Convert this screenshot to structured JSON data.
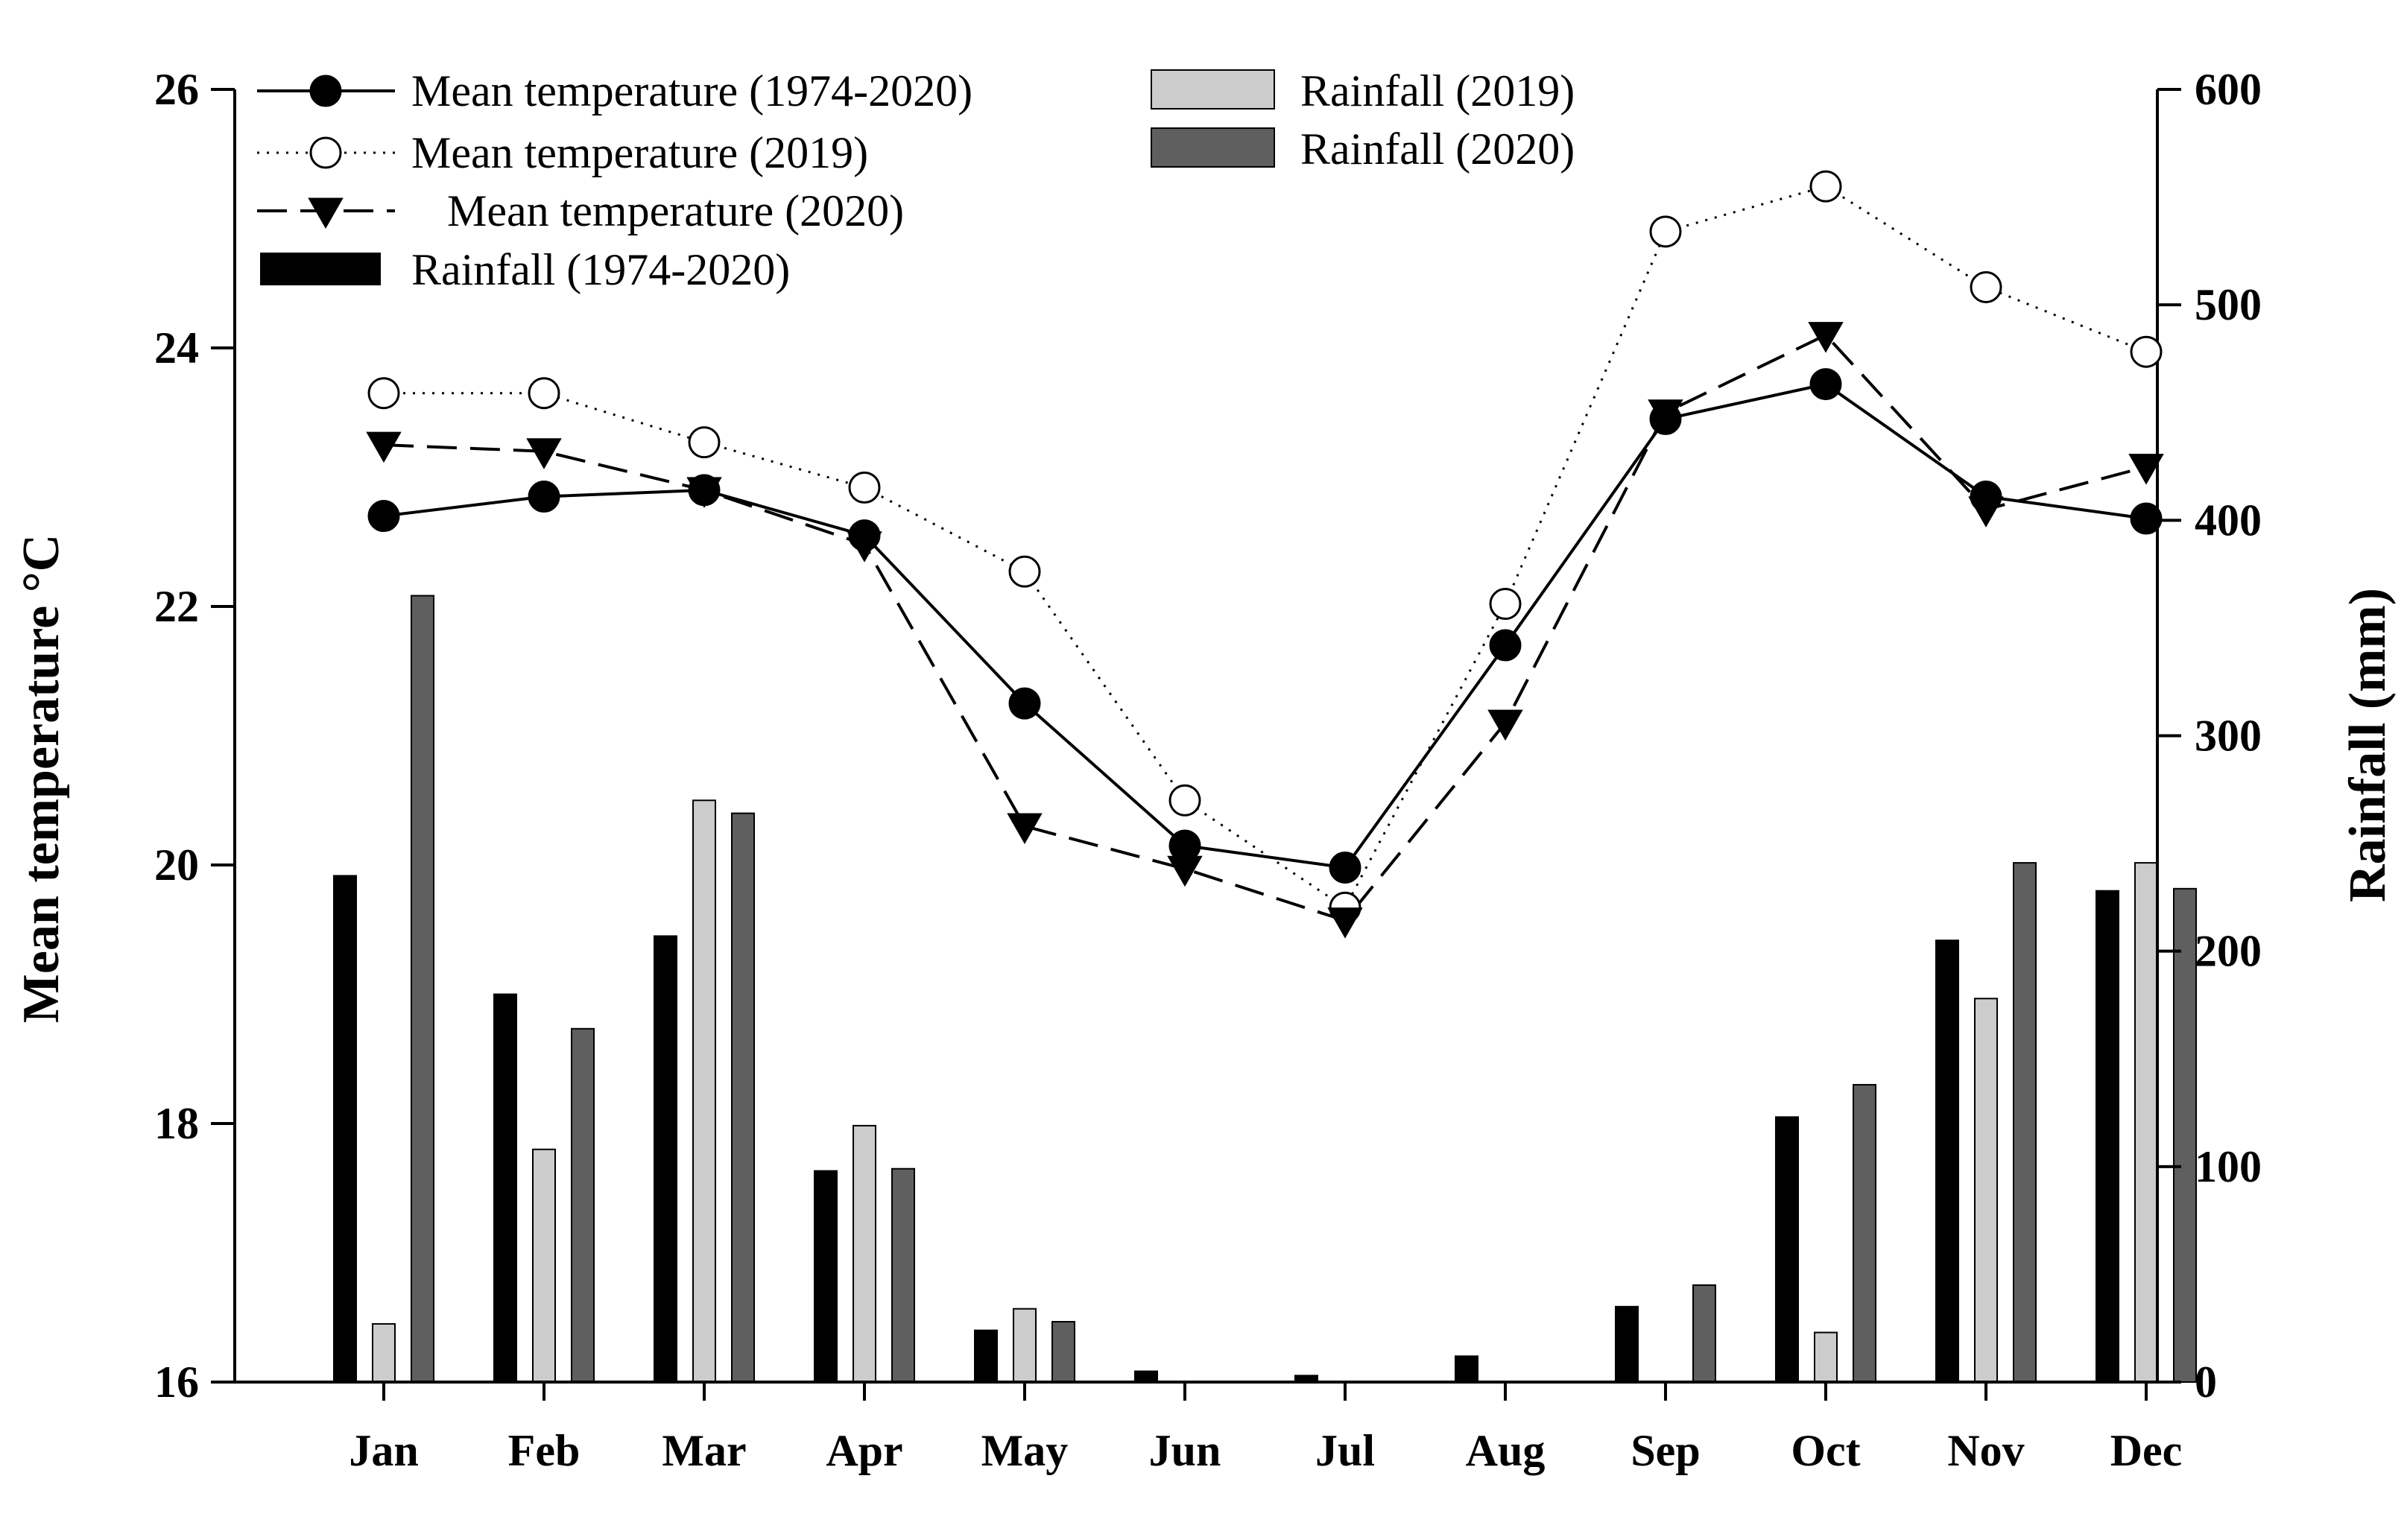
{
  "chart_data": {
    "type": "bar+line",
    "categories": [
      "Jan",
      "Feb",
      "Mar",
      "Apr",
      "May",
      "Jun",
      "Jul",
      "Aug",
      "Sep",
      "Oct",
      "Nov",
      "Dec"
    ],
    "y_left": {
      "label": "Mean temperature °C",
      "ylim": [
        16,
        26
      ],
      "ticks": [
        "16",
        "18",
        "20",
        "22",
        "24",
        "26"
      ]
    },
    "y_right": {
      "label": "Rainfall (mm)",
      "ylim": [
        0,
        600
      ],
      "ticks": [
        "0",
        "100",
        "200",
        "300",
        "400",
        "500",
        "600"
      ]
    },
    "line_series": [
      {
        "name": "Mean temperature (1974-2020)",
        "style": "solid",
        "marker": "filled-circle",
        "values": [
          22.7,
          22.85,
          22.9,
          22.55,
          21.25,
          20.15,
          19.98,
          21.7,
          23.45,
          23.72,
          22.85,
          22.68
        ]
      },
      {
        "name": "Mean temperature (2019)",
        "style": "dotted",
        "marker": "open-circle",
        "values": [
          23.65,
          23.65,
          23.27,
          22.92,
          22.27,
          20.5,
          19.67,
          22.02,
          24.9,
          25.25,
          24.47,
          23.97
        ]
      },
      {
        "name": "Mean temperature (2020)",
        "style": "dashed",
        "marker": "filled-triangle-down",
        "values": [
          23.25,
          23.2,
          22.9,
          22.48,
          20.3,
          19.97,
          19.57,
          21.1,
          23.5,
          24.1,
          22.75,
          23.08
        ]
      }
    ],
    "bar_series": [
      {
        "name": "Rainfall (1974-2020)",
        "color": "#000000",
        "values": [
          235,
          180,
          207,
          98,
          24,
          5,
          3,
          12,
          35,
          123,
          205,
          228
        ]
      },
      {
        "name": "Rainfall (2019)",
        "color": "#cccccc",
        "values": [
          27,
          108,
          270,
          119,
          34,
          0,
          0,
          0,
          0,
          23,
          178,
          241
        ]
      },
      {
        "name": "Rainfall (2020)",
        "color": "#5f5f5f",
        "values": [
          365,
          164,
          264,
          99,
          28,
          0,
          0,
          0,
          45,
          138,
          241,
          229
        ]
      }
    ],
    "legend": {
      "left_column": [
        "Mean temperature (1974-2020)",
        "Mean temperature (2019)",
        "Mean temperature (2020)",
        "Rainfall (1974-2020)"
      ],
      "right_column": [
        "Rainfall (2019)",
        "Rainfall (2020)"
      ],
      "placement": "top-left"
    }
  }
}
